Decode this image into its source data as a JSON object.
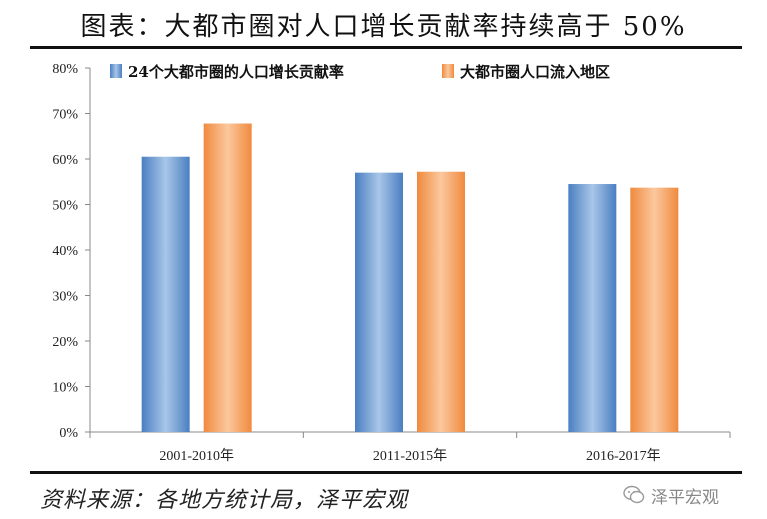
{
  "header": {
    "title": "图表：大都市圈对人口增长贡献率持续高于 50%"
  },
  "footer": {
    "source": "资料来源：各地方统计局，泽平宏观",
    "watermark": "泽平宏观"
  },
  "colors": {
    "series1": "#4a7fc1",
    "series2": "#f08a3e",
    "axis": "#888888"
  },
  "chart_data": {
    "type": "bar",
    "categories": [
      "2001-2010年",
      "2011-2015年",
      "2016-2017年"
    ],
    "series": [
      {
        "name": "24个大都市圈的人口增长贡献率",
        "values": [
          60.5,
          57.0,
          54.5
        ]
      },
      {
        "name": "大都市圈人口流入地区",
        "values": [
          67.8,
          57.2,
          53.7
        ]
      }
    ],
    "yticks": [
      "0%",
      "10%",
      "20%",
      "30%",
      "40%",
      "50%",
      "60%",
      "70%",
      "80%"
    ],
    "ylim": [
      0,
      80
    ],
    "legend_position": "top-left",
    "grid": false,
    "xlabel": "",
    "ylabel": ""
  }
}
